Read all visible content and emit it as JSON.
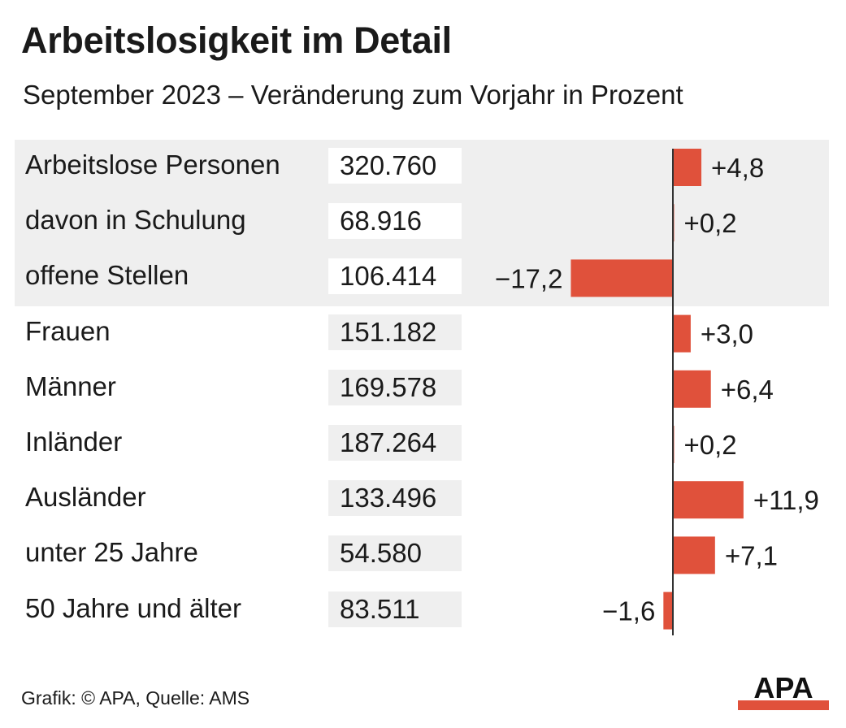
{
  "title": "Arbeitslosigkeit im Detail",
  "subtitle": "September 2023 – Veränderung zum Vorjahr in Prozent",
  "footer": "Grafik: © APA, Quelle: AMS",
  "logo_text": "APA",
  "colors": {
    "bar": "#e0513b",
    "highlight_band": "#efefef",
    "highlight_value_box": "#ffffff",
    "value_box": "#efefef",
    "axis": "#333333",
    "text": "#1a1a1a",
    "logo_red": "#e0513b"
  },
  "rows": [
    {
      "label": "Arbeitslose Personen",
      "value": "320.760",
      "change_label": "+4,8",
      "highlight": true
    },
    {
      "label": "davon in Schulung",
      "value": "68.916",
      "change_label": "+0,2",
      "highlight": true
    },
    {
      "label": "offene Stellen",
      "value": "106.414",
      "change_label": "−17,2",
      "highlight": true
    },
    {
      "label": "Frauen",
      "value": "151.182",
      "change_label": "+3,0",
      "highlight": false
    },
    {
      "label": "Männer",
      "value": "169.578",
      "change_label": "+6,4",
      "highlight": false
    },
    {
      "label": "Inländer",
      "value": "187.264",
      "change_label": "+0,2",
      "highlight": false
    },
    {
      "label": "Ausländer",
      "value": "133.496",
      "change_label": "+11,9",
      "highlight": false
    },
    {
      "label": "unter 25 Jahre",
      "value": "54.580",
      "change_label": "+7,1",
      "highlight": false
    },
    {
      "label": "50 Jahre und älter",
      "value": "83.511",
      "change_label": "−1,6",
      "highlight": false
    }
  ],
  "chart_data": {
    "type": "bar",
    "orientation": "horizontal",
    "title": "Arbeitslosigkeit im Detail",
    "subtitle": "September 2023 – Veränderung zum Vorjahr in Prozent",
    "categories": [
      "Arbeitslose Personen",
      "davon in Schulung",
      "offene Stellen",
      "Frauen",
      "Männer",
      "Inländer",
      "Ausländer",
      "unter 25 Jahre",
      "50 Jahre und älter"
    ],
    "values": [
      4.8,
      0.2,
      -17.2,
      3.0,
      6.4,
      0.2,
      11.9,
      7.1,
      -1.6
    ],
    "absolute_values": [
      320760,
      68916,
      106414,
      151182,
      169578,
      187264,
      133496,
      54580,
      83511
    ],
    "grid": false,
    "legend": "none"
  }
}
